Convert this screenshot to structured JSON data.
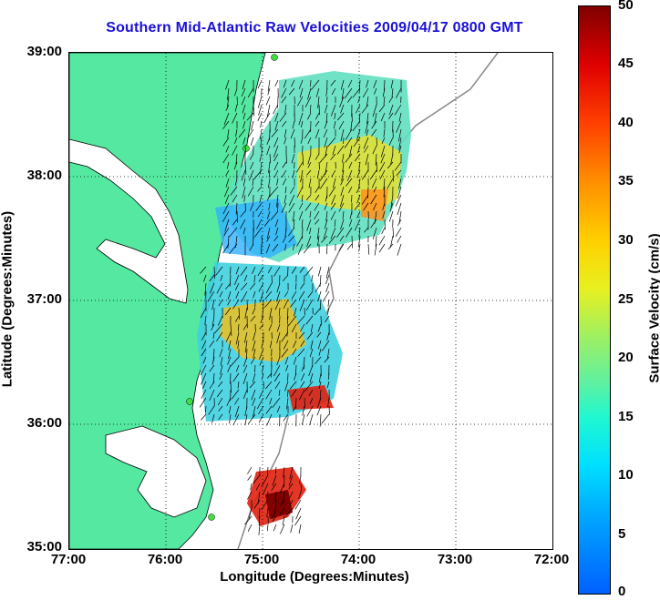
{
  "title": "Southern Mid-Atlantic Raw Velocities 2009/04/17 0800 GMT",
  "xlabel": "Longitude (Degrees:Minutes)",
  "ylabel": "Latitude (Degrees:Minutes)",
  "xticks": [
    "77:00",
    "76:00",
    "75:00",
    "74:00",
    "73:00",
    "72:00"
  ],
  "yticks": [
    "39:00",
    "38:00",
    "37:00",
    "36:00",
    "35:00"
  ],
  "colorbar": {
    "label": "Surface Velocity (cm/s)",
    "ticks": [
      "50",
      "45",
      "40",
      "35",
      "30",
      "25",
      "20",
      "15",
      "10",
      "5",
      "0"
    ]
  },
  "colors": {
    "land": "#55e8a0",
    "title": "#1a10d8"
  }
}
